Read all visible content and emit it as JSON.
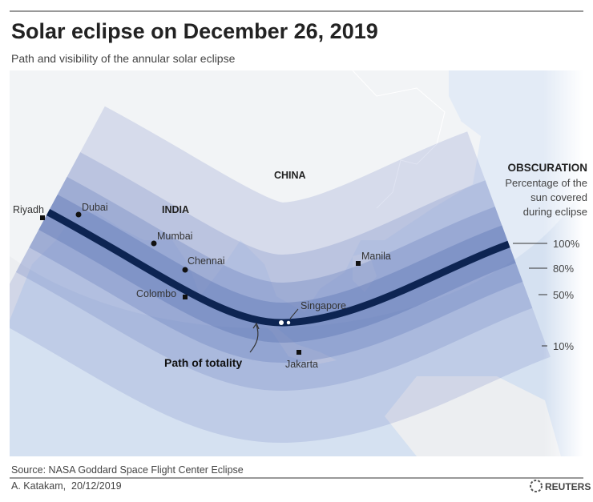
{
  "header": {
    "title": "Solar eclipse on December 26, 2019",
    "subtitle": "Path and visibility of the annular solar eclipse"
  },
  "map": {
    "countries": [
      "CHINA",
      "INDIA"
    ],
    "cities": [
      "Riyadh",
      "Dubai",
      "Mumbai",
      "Chennai",
      "Colombo",
      "Singapore",
      "Manila",
      "Jakarta"
    ],
    "annotation": "Path of totality"
  },
  "legend": {
    "title": "OBSCURATION",
    "description": [
      "Percentage of the",
      "sun covered",
      "during eclipse"
    ],
    "levels": [
      "100%",
      "80%",
      "50%",
      "10%"
    ]
  },
  "footer": {
    "source": "Source: NASA Goddard Space Flight Center Eclipse",
    "credit": "A. Katakam,  20/12/2019",
    "brand": "REUTERS"
  }
}
